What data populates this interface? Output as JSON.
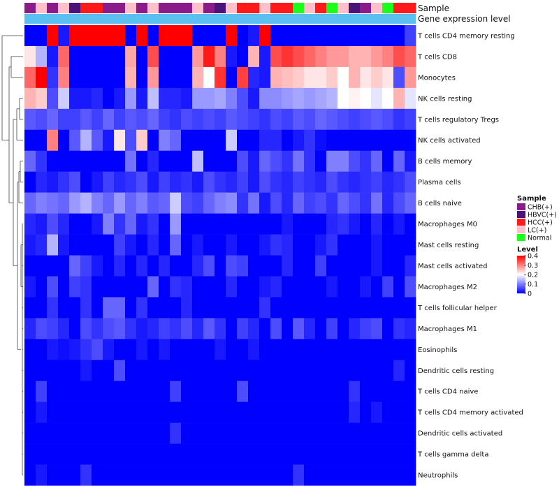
{
  "chart_data": {
    "type": "heatmap",
    "title": "",
    "annotation_labels": {
      "sample": "Sample",
      "gene": "Gene expression level"
    },
    "sample_groups": [
      "CHB(+)",
      "HBVC(+)",
      "HCC(+)",
      "LC(+)",
      "Normal"
    ],
    "group_colors": {
      "CHB(+)": "#8b1a8b",
      "HBVC(+)": "#4b137a",
      "HCC(+)": "#ff1a1a",
      "LC(+)": "#ffc0cb",
      "Normal": "#1aff1a"
    },
    "gene_level_color": "#5bc0f0",
    "color_scale": {
      "min": 0,
      "max": 0.4,
      "low": "#0000ff",
      "mid": "#ffffff",
      "high": "#ff0000"
    },
    "legend": {
      "sample_title": "Sample",
      "level_title": "Level",
      "level_ticks": [
        "0.4",
        "0.3",
        "0.2",
        "0.1",
        "0"
      ]
    },
    "columns": [
      "CHB(+)",
      "LC(+)",
      "CHB(+)",
      "LC(+)",
      "HBVC(+)",
      "HCC(+)",
      "HCC(+)",
      "CHB(+)",
      "CHB(+)",
      "LC(+)",
      "CHB(+)",
      "LC(+)",
      "CHB(+)",
      "CHB(+)",
      "CHB(+)",
      "LC(+)",
      "CHB(+)",
      "HBVC(+)",
      "LC(+)",
      "HCC(+)",
      "HCC(+)",
      "LC(+)",
      "HCC(+)",
      "HCC(+)",
      "Normal",
      "LC(+)",
      "HCC(+)",
      "Normal",
      "LC(+)",
      "HBVC(+)",
      "CHB(+)",
      "LC(+)",
      "Normal",
      "HCC(+)",
      "HCC(+)"
    ],
    "rows": [
      "T cells CD4 memory resting",
      "T cells CD8",
      "Monocytes",
      "NK cells resting",
      "T cells regulatory  Tregs",
      "NK cells activated",
      "B cells memory",
      "Plasma cells",
      "B cells naive",
      "Macrophages M0",
      "Mast cells resting",
      "Mast cells activated",
      "Macrophages M2",
      "T cells follicular helper",
      "Macrophages M1",
      "Eosinophils",
      "Dendritic cells resting",
      "T cells CD4 naive",
      "T cells CD4 memory activated",
      "Dendritic cells activated",
      "T cells gamma delta",
      "Neutrophils"
    ],
    "values": [
      [
        0.0,
        0.0,
        0.4,
        0.02,
        0.4,
        0.4,
        0.4,
        0.4,
        0.4,
        0.0,
        0.4,
        0.0,
        0.4,
        0.4,
        0.4,
        0.0,
        0.0,
        0.0,
        0.4,
        0.0,
        0.02,
        0.4,
        0.0,
        0.0,
        0.0,
        0.0,
        0.0,
        0.0,
        0.0,
        0.0,
        0.0,
        0.0,
        0.0,
        0.0,
        0.05
      ],
      [
        0.22,
        0.14,
        0.02,
        0.32,
        0.0,
        0.0,
        0.0,
        0.0,
        0.0,
        0.27,
        0.0,
        0.34,
        0.0,
        0.0,
        0.0,
        0.28,
        0.38,
        0.3,
        0.02,
        0.0,
        0.26,
        0.02,
        0.34,
        0.36,
        0.34,
        0.32,
        0.3,
        0.28,
        0.28,
        0.26,
        0.26,
        0.28,
        0.3,
        0.34,
        0.32
      ],
      [
        0.32,
        0.4,
        0.04,
        0.3,
        0.0,
        0.0,
        0.0,
        0.0,
        0.0,
        0.26,
        0.0,
        0.28,
        0.0,
        0.0,
        0.0,
        0.26,
        0.2,
        0.36,
        0.0,
        0.35,
        0.03,
        0.02,
        0.26,
        0.25,
        0.24,
        0.22,
        0.22,
        0.24,
        0.2,
        0.26,
        0.22,
        0.24,
        0.22,
        0.06,
        0.28
      ],
      [
        0.26,
        0.24,
        0.06,
        0.16,
        0.02,
        0.02,
        0.03,
        0.0,
        0.02,
        0.12,
        0.02,
        0.15,
        0.03,
        0.03,
        0.02,
        0.12,
        0.12,
        0.13,
        0.1,
        0.06,
        0.02,
        0.11,
        0.11,
        0.12,
        0.13,
        0.12,
        0.13,
        0.14,
        0.2,
        0.21,
        0.2,
        0.18,
        0.2,
        0.26,
        0.18
      ],
      [
        0.07,
        0.06,
        0.08,
        0.05,
        0.05,
        0.07,
        0.05,
        0.08,
        0.05,
        0.07,
        0.06,
        0.08,
        0.05,
        0.04,
        0.06,
        0.05,
        0.06,
        0.05,
        0.07,
        0.06,
        0.05,
        0.04,
        0.06,
        0.05,
        0.07,
        0.06,
        0.08,
        0.07,
        0.06,
        0.05,
        0.06,
        0.07,
        0.06,
        0.04,
        0.05
      ],
      [
        0.0,
        0.0,
        0.3,
        0.0,
        0.07,
        0.14,
        0.07,
        0.02,
        0.22,
        0.06,
        0.24,
        0.0,
        0.1,
        0.08,
        0.0,
        0.0,
        0.0,
        0.0,
        0.16,
        0.0,
        0.0,
        0.03,
        0.03,
        0.0,
        0.02,
        0.04,
        0.01,
        0.0,
        0.0,
        0.0,
        0.0,
        0.0,
        0.0,
        0.0,
        0.0
      ],
      [
        0.08,
        0.04,
        0.0,
        0.0,
        0.0,
        0.0,
        0.0,
        0.0,
        0.0,
        0.09,
        0.0,
        0.03,
        0.0,
        0.0,
        0.0,
        0.15,
        0.0,
        0.0,
        0.0,
        0.06,
        0.02,
        0.08,
        0.06,
        0.04,
        0.09,
        0.04,
        0.0,
        0.1,
        0.1,
        0.06,
        0.04,
        0.08,
        0.0,
        0.08,
        0.02
      ],
      [
        0.0,
        0.03,
        0.02,
        0.04,
        0.06,
        0.0,
        0.02,
        0.05,
        0.03,
        0.04,
        0.06,
        0.02,
        0.05,
        0.03,
        0.04,
        0.02,
        0.06,
        0.04,
        0.03,
        0.05,
        0.02,
        0.06,
        0.04,
        0.03,
        0.05,
        0.04,
        0.03,
        0.06,
        0.04,
        0.03,
        0.04,
        0.05,
        0.03,
        0.04,
        0.06
      ],
      [
        0.08,
        0.1,
        0.09,
        0.08,
        0.12,
        0.14,
        0.1,
        0.08,
        0.12,
        0.08,
        0.1,
        0.07,
        0.08,
        0.16,
        0.06,
        0.05,
        0.08,
        0.1,
        0.11,
        0.04,
        0.09,
        0.02,
        0.06,
        0.03,
        0.08,
        0.05,
        0.06,
        0.04,
        0.08,
        0.06,
        0.04,
        0.09,
        0.03,
        0.06,
        0.08
      ],
      [
        0.03,
        0.02,
        0.06,
        0.03,
        0.0,
        0.0,
        0.02,
        0.1,
        0.04,
        0.08,
        0.02,
        0.04,
        0.0,
        0.12,
        0.0,
        0.0,
        0.0,
        0.0,
        0.0,
        0.0,
        0.0,
        0.0,
        0.0,
        0.02,
        0.0,
        0.0,
        0.0,
        0.03,
        0.04,
        0.02,
        0.0,
        0.03,
        0.0,
        0.02,
        0.0
      ],
      [
        0.02,
        0.03,
        0.14,
        0.02,
        0.0,
        0.0,
        0.0,
        0.0,
        0.05,
        0.02,
        0.0,
        0.03,
        0.0,
        0.08,
        0.0,
        0.02,
        0.0,
        0.0,
        0.02,
        0.0,
        0.0,
        0.02,
        0.04,
        0.03,
        0.0,
        0.0,
        0.02,
        0.04,
        0.0,
        0.0,
        0.0,
        0.02,
        0.0,
        0.0,
        0.0
      ],
      [
        0.0,
        0.0,
        0.0,
        0.0,
        0.08,
        0.05,
        0.02,
        0.0,
        0.03,
        0.0,
        0.03,
        0.0,
        0.03,
        0.0,
        0.0,
        0.03,
        0.06,
        0.0,
        0.06,
        0.05,
        0.0,
        0.0,
        0.0,
        0.03,
        0.0,
        0.0,
        0.05,
        0.0,
        0.0,
        0.0,
        0.0,
        0.02,
        0.0,
        0.0,
        0.03
      ],
      [
        0.02,
        0.0,
        0.06,
        0.0,
        0.05,
        0.04,
        0.0,
        0.0,
        0.0,
        0.0,
        0.0,
        0.08,
        0.0,
        0.04,
        0.03,
        0.0,
        0.0,
        0.0,
        0.03,
        0.0,
        0.0,
        0.02,
        0.03,
        0.0,
        0.0,
        0.0,
        0.0,
        0.02,
        0.0,
        0.0,
        0.02,
        0.0,
        0.05,
        0.0,
        0.06
      ],
      [
        0.0,
        0.0,
        0.04,
        0.0,
        0.0,
        0.04,
        0.0,
        0.08,
        0.08,
        0.0,
        0.04,
        0.0,
        0.0,
        0.0,
        0.03,
        0.0,
        0.0,
        0.0,
        0.0,
        0.0,
        0.0,
        0.04,
        0.0,
        0.0,
        0.0,
        0.0,
        0.0,
        0.0,
        0.0,
        0.0,
        0.0,
        0.0,
        0.0,
        0.0,
        0.0
      ],
      [
        0.03,
        0.06,
        0.05,
        0.03,
        0.0,
        0.06,
        0.04,
        0.06,
        0.07,
        0.04,
        0.02,
        0.03,
        0.05,
        0.04,
        0.06,
        0.03,
        0.07,
        0.04,
        0.0,
        0.05,
        0.03,
        0.0,
        0.06,
        0.0,
        0.07,
        0.03,
        0.0,
        0.05,
        0.0,
        0.03,
        0.05,
        0.06,
        0.0,
        0.04,
        0.03
      ],
      [
        0.0,
        0.0,
        0.02,
        0.01,
        0.02,
        0.04,
        0.06,
        0.02,
        0.0,
        0.0,
        0.02,
        0.0,
        0.02,
        0.0,
        0.0,
        0.0,
        0.0,
        0.02,
        0.0,
        0.0,
        0.02,
        0.0,
        0.0,
        0.0,
        0.0,
        0.0,
        0.0,
        0.0,
        0.0,
        0.0,
        0.0,
        0.0,
        0.0,
        0.0,
        0.0
      ],
      [
        0.0,
        0.0,
        0.0,
        0.0,
        0.0,
        0.02,
        0.0,
        0.0,
        0.06,
        0.0,
        0.0,
        0.0,
        0.0,
        0.0,
        0.0,
        0.0,
        0.0,
        0.0,
        0.0,
        0.0,
        0.0,
        0.0,
        0.0,
        0.0,
        0.0,
        0.0,
        0.0,
        0.0,
        0.0,
        0.0,
        0.0,
        0.0,
        0.0,
        0.03,
        0.0
      ],
      [
        0.0,
        0.05,
        0.0,
        0.0,
        0.0,
        0.0,
        0.0,
        0.0,
        0.0,
        0.0,
        0.0,
        0.0,
        0.0,
        0.05,
        0.0,
        0.0,
        0.0,
        0.0,
        0.0,
        0.06,
        0.0,
        0.0,
        0.0,
        0.0,
        0.0,
        0.0,
        0.0,
        0.0,
        0.0,
        0.04,
        0.0,
        0.0,
        0.0,
        0.0,
        0.0
      ],
      [
        0.0,
        0.02,
        0.0,
        0.0,
        0.0,
        0.0,
        0.0,
        0.0,
        0.0,
        0.0,
        0.0,
        0.0,
        0.0,
        0.0,
        0.0,
        0.0,
        0.0,
        0.0,
        0.0,
        0.0,
        0.0,
        0.0,
        0.0,
        0.0,
        0.0,
        0.0,
        0.0,
        0.0,
        0.0,
        0.03,
        0.0,
        0.02,
        0.0,
        0.0,
        0.0
      ],
      [
        0.0,
        0.0,
        0.0,
        0.0,
        0.0,
        0.0,
        0.0,
        0.0,
        0.0,
        0.0,
        0.0,
        0.0,
        0.0,
        0.04,
        0.0,
        0.0,
        0.0,
        0.0,
        0.0,
        0.0,
        0.0,
        0.0,
        0.0,
        0.0,
        0.0,
        0.0,
        0.0,
        0.0,
        0.0,
        0.0,
        0.0,
        0.0,
        0.0,
        0.0,
        0.0
      ],
      [
        0.0,
        0.0,
        0.0,
        0.0,
        0.0,
        0.0,
        0.0,
        0.0,
        0.0,
        0.0,
        0.0,
        0.0,
        0.0,
        0.0,
        0.0,
        0.0,
        0.0,
        0.0,
        0.0,
        0.0,
        0.0,
        0.0,
        0.0,
        0.0,
        0.0,
        0.0,
        0.0,
        0.0,
        0.0,
        0.0,
        0.0,
        0.0,
        0.0,
        0.0,
        0.0
      ],
      [
        0.0,
        0.02,
        0.0,
        0.0,
        0.0,
        0.04,
        0.0,
        0.0,
        0.0,
        0.0,
        0.0,
        0.0,
        0.0,
        0.0,
        0.0,
        0.0,
        0.0,
        0.0,
        0.0,
        0.0,
        0.0,
        0.0,
        0.0,
        0.0,
        0.04,
        0.0,
        0.0,
        0.0,
        0.0,
        0.0,
        0.0,
        0.0,
        0.0,
        0.0,
        0.0
      ]
    ]
  }
}
